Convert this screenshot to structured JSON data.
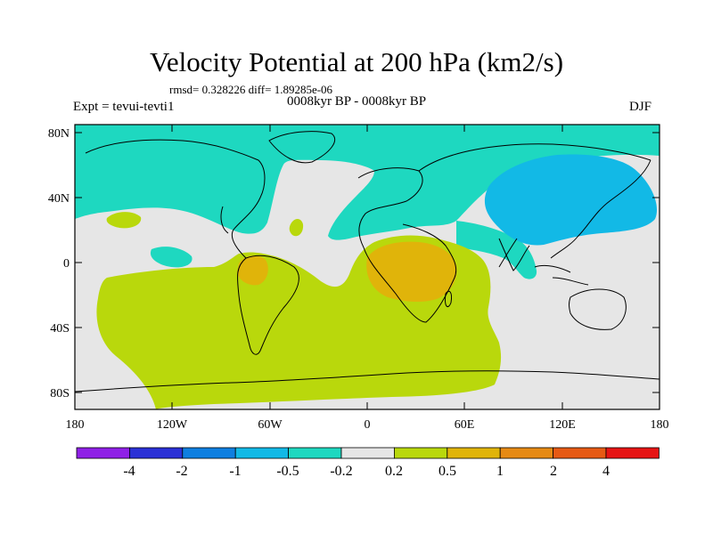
{
  "title": "Velocity Potential at 200 hPa (km2/s)",
  "stats": "rmsd= 0.328226 diff= 1.89285e-06",
  "period": "0008kyr BP - 0008kyr BP",
  "expt": "Expt = tevui-tevti1",
  "season": "DJF",
  "y_ticks": [
    "80N",
    "40N",
    "0",
    "40S",
    "80S"
  ],
  "x_ticks": [
    "180",
    "120W",
    "60W",
    "0",
    "60E",
    "120E",
    "180"
  ],
  "colorbar": {
    "labels": [
      "-4",
      "-2",
      "-1",
      "-0.5",
      "-0.2",
      "0.2",
      "0.5",
      "1",
      "2",
      "4"
    ],
    "colors": [
      "#8f20e6",
      "#2b31d6",
      "#0f7fe0",
      "#12b9e6",
      "#1ed8c0",
      "#e6e6e6",
      "#b9d80c",
      "#e0b40a",
      "#e68a14",
      "#e65a14",
      "#e61414"
    ]
  }
}
